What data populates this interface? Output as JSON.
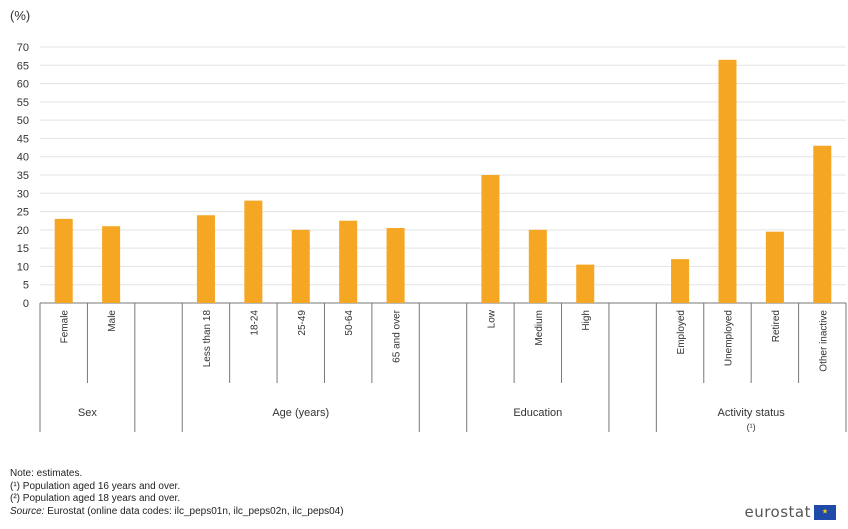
{
  "chart_data": {
    "type": "bar",
    "yunit": "(%)",
    "ylim": [
      0,
      70
    ],
    "yticks": [
      0,
      5,
      10,
      15,
      20,
      25,
      30,
      35,
      40,
      45,
      50,
      55,
      60,
      65,
      70
    ],
    "grid": true,
    "bar_color": "#f5a623",
    "groups": [
      {
        "label": "Sex",
        "label2": "",
        "categories": [
          "Female",
          "Male"
        ],
        "values": [
          23,
          21
        ]
      },
      {
        "label": "Age (years)",
        "label2": "",
        "categories": [
          "Less than 18",
          "18-24",
          "25-49",
          "50-64",
          "65 and over"
        ],
        "values": [
          24,
          28,
          20,
          22.5,
          20.5
        ]
      },
      {
        "label": "Education",
        "label2": "",
        "categories": [
          "Low",
          "Medium",
          "High"
        ],
        "values": [
          35,
          20,
          10.5
        ]
      },
      {
        "label": "Activity status",
        "label2": "(¹)",
        "categories": [
          "Employed",
          "Unemployed",
          "Retired",
          "Other inactive"
        ],
        "values": [
          12,
          66.5,
          19.5,
          43
        ]
      }
    ]
  },
  "notes": {
    "line1": "Note: estimates.",
    "line2": "(¹) Population aged 16 years and over.",
    "line3": "(²) Population aged 18 years and over.",
    "source_label": "Source:",
    "source_text": " Eurostat (online data codes: ilc_peps01n, ilc_peps02n, ilc_peps04)"
  },
  "logo": {
    "text": "eurostat",
    "flag_stars": "★"
  }
}
